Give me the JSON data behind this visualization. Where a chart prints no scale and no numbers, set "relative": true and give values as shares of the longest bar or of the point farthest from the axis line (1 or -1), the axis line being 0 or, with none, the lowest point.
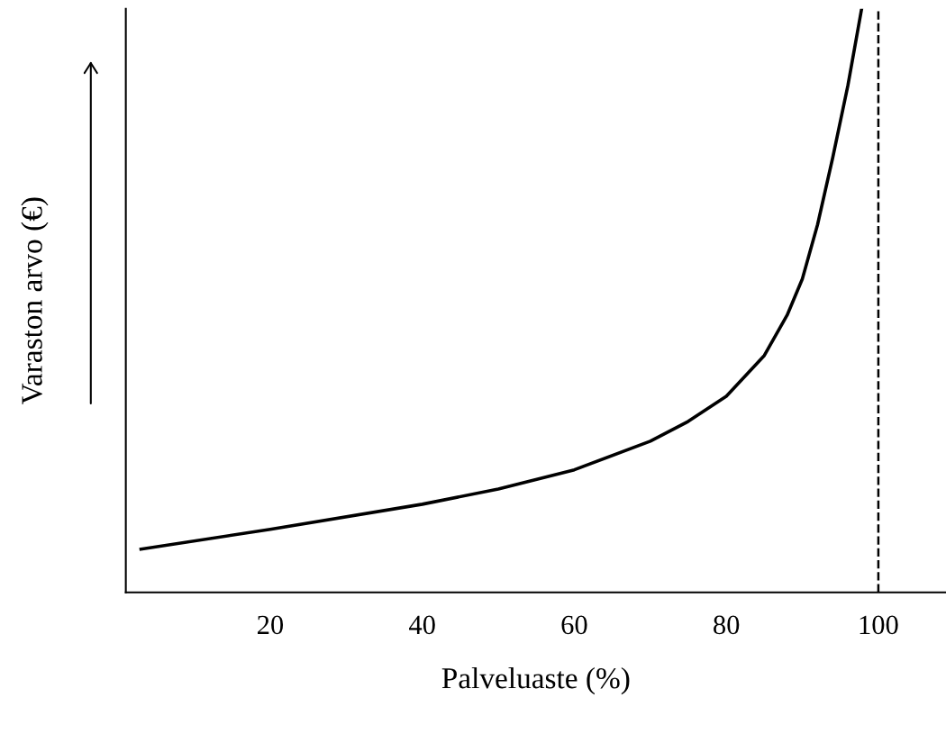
{
  "chart_data": {
    "type": "line",
    "xlabel": "Palveluaste (%)",
    "ylabel": "Varaston arvo (€)",
    "relative": true,
    "xlim": [
      1,
      108.9
    ],
    "xticks": [
      20,
      40,
      60,
      80,
      100
    ],
    "grid": false,
    "legend": false,
    "marker": "none",
    "line_style": "solid",
    "x": [
      3,
      20,
      40,
      50,
      60,
      70,
      75,
      80,
      85,
      88,
      90,
      92,
      94,
      96,
      97.8
    ],
    "series": [
      {
        "color": "#000000",
        "values": [
          0.074,
          0.108,
          0.151,
          0.177,
          0.21,
          0.259,
          0.293,
          0.336,
          0.406,
          0.475,
          0.537,
          0.63,
          0.745,
          0.869,
          1.0
        ]
      }
    ],
    "ref_lines": [
      {
        "axis": "x",
        "value": 100,
        "line_style": "dashed",
        "color": "#000000"
      }
    ]
  }
}
